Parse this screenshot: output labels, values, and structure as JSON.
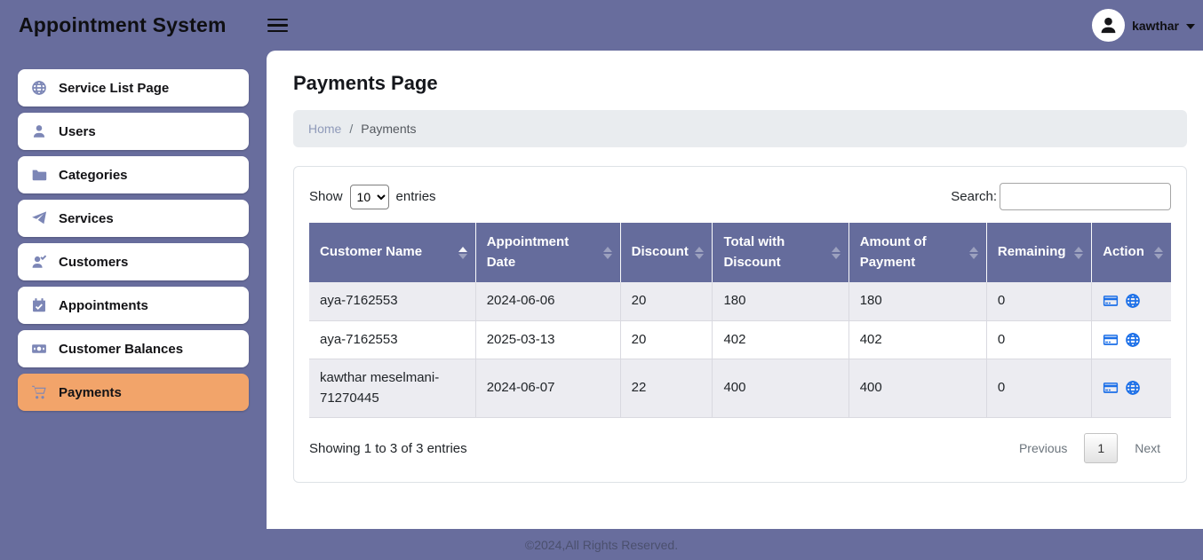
{
  "navbar": {
    "title": "Appointment System",
    "user": {
      "name": "kawthar"
    }
  },
  "sidebar": {
    "items": [
      {
        "label": "Service List Page",
        "icon": "globe-icon",
        "active": false
      },
      {
        "label": "Users",
        "icon": "user-icon",
        "active": false
      },
      {
        "label": "Categories",
        "icon": "folder-icon",
        "active": false
      },
      {
        "label": "Services",
        "icon": "paper-plane-icon",
        "active": false
      },
      {
        "label": "Customers",
        "icon": "user-check-icon",
        "active": false
      },
      {
        "label": "Appointments",
        "icon": "calendar-check-icon",
        "active": false
      },
      {
        "label": "Customer Balances",
        "icon": "money-bill-icon",
        "active": false
      },
      {
        "label": "Payments",
        "icon": "cart-icon",
        "active": true
      }
    ]
  },
  "page": {
    "title": "Payments Page",
    "breadcrumb": {
      "home": "Home",
      "separator": "/",
      "current": "Payments"
    }
  },
  "table_controls": {
    "show_label": "Show",
    "page_size": "10",
    "entries_label": "entries",
    "search_label": "Search:",
    "search_value": ""
  },
  "table": {
    "columns": [
      {
        "label": "Customer Name",
        "sort": "asc",
        "width": "19.3%"
      },
      {
        "label": "Appointment Date",
        "sort": "none",
        "width": "16.8%"
      },
      {
        "label": "Discount",
        "sort": "none",
        "width": "10.7%"
      },
      {
        "label": "Total with Discount",
        "sort": "none",
        "width": "15.8%"
      },
      {
        "label": "Amount of Payment",
        "sort": "none",
        "width": "16.0%"
      },
      {
        "label": "Remaining",
        "sort": "none",
        "width": "12.2%"
      },
      {
        "label": "Action",
        "sort": "none",
        "width": "9.2%"
      }
    ],
    "rows": [
      {
        "customer_name": "aya-7162553",
        "appointment_date": "2024-06-06",
        "discount": "20",
        "total_with_discount": "180",
        "amount_of_payment": "180",
        "remaining": "0"
      },
      {
        "customer_name": "aya-7162553",
        "appointment_date": "2025-03-13",
        "discount": "20",
        "total_with_discount": "402",
        "amount_of_payment": "402",
        "remaining": "0"
      },
      {
        "customer_name": "kawthar meselmani-71270445",
        "appointment_date": "2024-06-07",
        "discount": "22",
        "total_with_discount": "400",
        "amount_of_payment": "400",
        "remaining": "0"
      }
    ],
    "action_icons": [
      "credit-card-icon",
      "globe-icon"
    ]
  },
  "table_footer": {
    "info": "Showing 1 to 3 of 3 entries",
    "pagination": {
      "previous": "Previous",
      "current_page": "1",
      "next": "Next"
    }
  },
  "footer": {
    "copyright": "©2024,All Rights Reserved."
  },
  "colors": {
    "navbar_bg": "#686D9D",
    "sidebar_active_bg": "#F2A46A",
    "sidebar_icon": "#7C86B6",
    "table_header_bg": "#656C9C",
    "table_stripe_bg": "#ECECF1",
    "action_icon_blue": "#1B6FE8",
    "breadcrumb_bg": "#E9ECEF",
    "breadcrumb_link": "#8F9AB9"
  }
}
